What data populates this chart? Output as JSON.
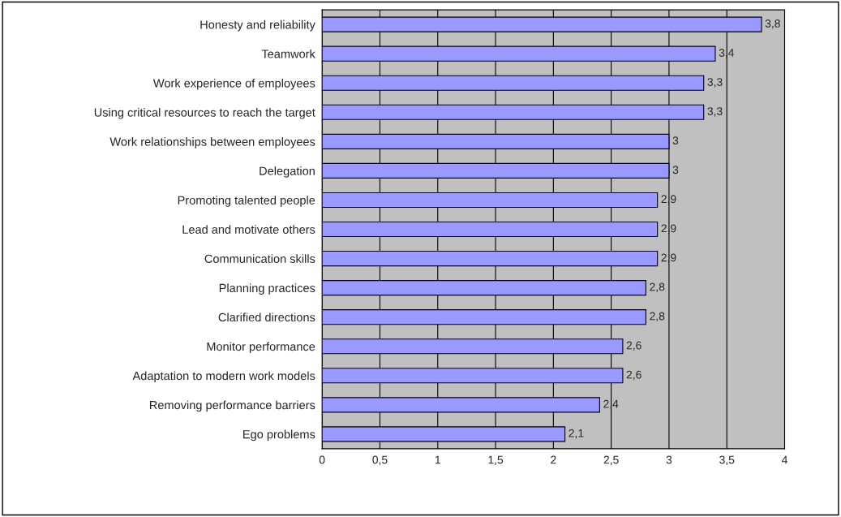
{
  "chart_data": {
    "type": "bar",
    "orientation": "horizontal",
    "categories": [
      "Honesty and reliability",
      "Teamwork",
      "Work experience of employees",
      "Using critical resources to reach the target",
      "Work relationships between employees",
      "Delegation",
      "Promoting talented people",
      "Lead and motivate others",
      "Communication skills",
      "Planning practices",
      "Clarified directions",
      "Monitor performance",
      "Adaptation to modern work models",
      "Removing performance barriers",
      "Ego problems"
    ],
    "values": [
      3.8,
      3.4,
      3.3,
      3.3,
      3,
      3,
      2.9,
      2.9,
      2.9,
      2.8,
      2.8,
      2.6,
      2.6,
      2.4,
      2.1
    ],
    "value_labels": [
      "3,8",
      "3,4",
      "3,3",
      "3,3",
      "3",
      "3",
      "2,9",
      "2,9",
      "2,9",
      "2,8",
      "2,8",
      "2,6",
      "2,6",
      "2,4",
      "2,1"
    ],
    "color": "#9999ff",
    "xlim": [
      0,
      4
    ],
    "xticks": [
      0,
      {
        "value": 0.5,
        "label": "0,5"
      },
      1,
      {
        "value": 1.5,
        "label": "1,5"
      },
      2,
      {
        "value": 2.5,
        "label": "2,5"
      },
      3,
      {
        "value": 3.5,
        "label": "3,5"
      },
      4
    ],
    "grid": "x",
    "legend": false
  }
}
